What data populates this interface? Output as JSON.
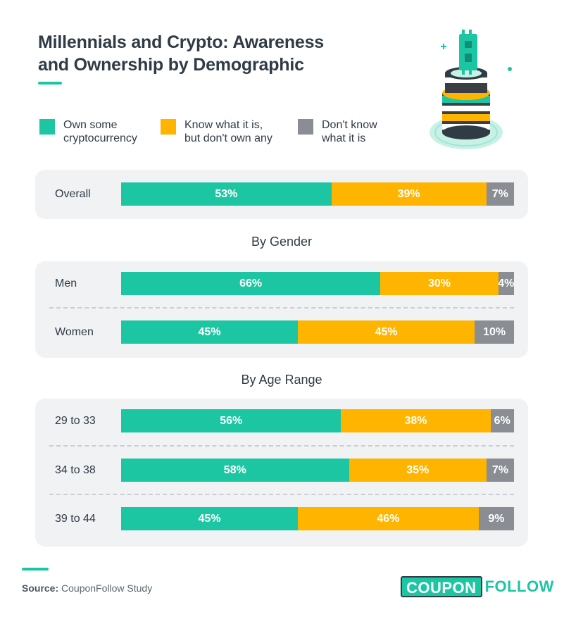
{
  "chart_data": {
    "type": "bar",
    "orientation": "horizontal",
    "stacked": true,
    "title": "Millennials and Crypto: Awareness and Ownership by Demographic",
    "title_lines": [
      "Millennials and Crypto: Awareness",
      "and Ownership by Demographic"
    ],
    "unit": "%",
    "xlim": [
      0,
      100
    ],
    "legend": [
      {
        "name": "Own some cryptocurrency",
        "lines": [
          "Own some",
          "cryptocurrency"
        ],
        "color": "#1cc6a3"
      },
      {
        "name": "Know what it is, but don't own any",
        "lines": [
          "Know what it is,",
          "but don't own any"
        ],
        "color": "#ffb400"
      },
      {
        "name": "Don't know what it is",
        "lines": [
          "Don't know",
          "what it is"
        ],
        "color": "#8a8d94"
      }
    ],
    "groups": [
      {
        "title": "",
        "rows": [
          {
            "label": "Overall",
            "values": [
              53,
              39,
              7
            ]
          }
        ]
      },
      {
        "title": "By Gender",
        "rows": [
          {
            "label": "Men",
            "values": [
              66,
              30,
              4
            ]
          },
          {
            "label": "Women",
            "values": [
              45,
              45,
              10
            ]
          }
        ]
      },
      {
        "title": "By Age Range",
        "rows": [
          {
            "label": "29 to 33",
            "values": [
              56,
              38,
              6
            ]
          },
          {
            "label": "34 to 38",
            "values": [
              58,
              35,
              7
            ]
          },
          {
            "label": "39 to 44",
            "values": [
              45,
              46,
              9
            ]
          }
        ]
      }
    ]
  },
  "footer": {
    "source_label": "Source:",
    "source_text": "CouponFollow Study",
    "logo_box": "COUPON",
    "logo_text": "FOLLOW"
  }
}
